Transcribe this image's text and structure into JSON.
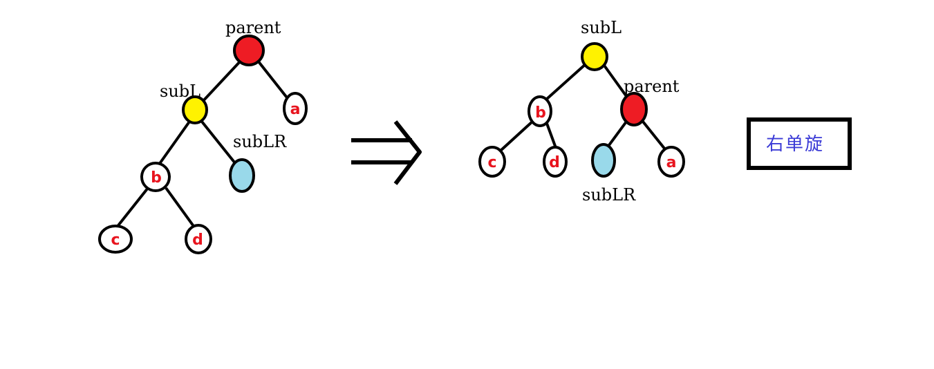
{
  "colors": {
    "parent_node": "#ee1c24",
    "subL_node": "#fff200",
    "subLR_node": "#99d9ea",
    "leaf_letters": "#e8141e",
    "caption_text": "#3b3bd6"
  },
  "before": {
    "parent_label": "parent",
    "subL_label": "subL",
    "subLR_label": "subLR",
    "leaf_a": "a",
    "leaf_b": "b",
    "leaf_c": "c",
    "leaf_d": "d"
  },
  "after": {
    "subL_label": "subL",
    "parent_label": "parent",
    "subLR_label": "subLR",
    "leaf_a": "a",
    "leaf_b": "b",
    "leaf_c": "c",
    "leaf_d": "d"
  },
  "arrow": "implies-arrow",
  "caption": "右单旋"
}
